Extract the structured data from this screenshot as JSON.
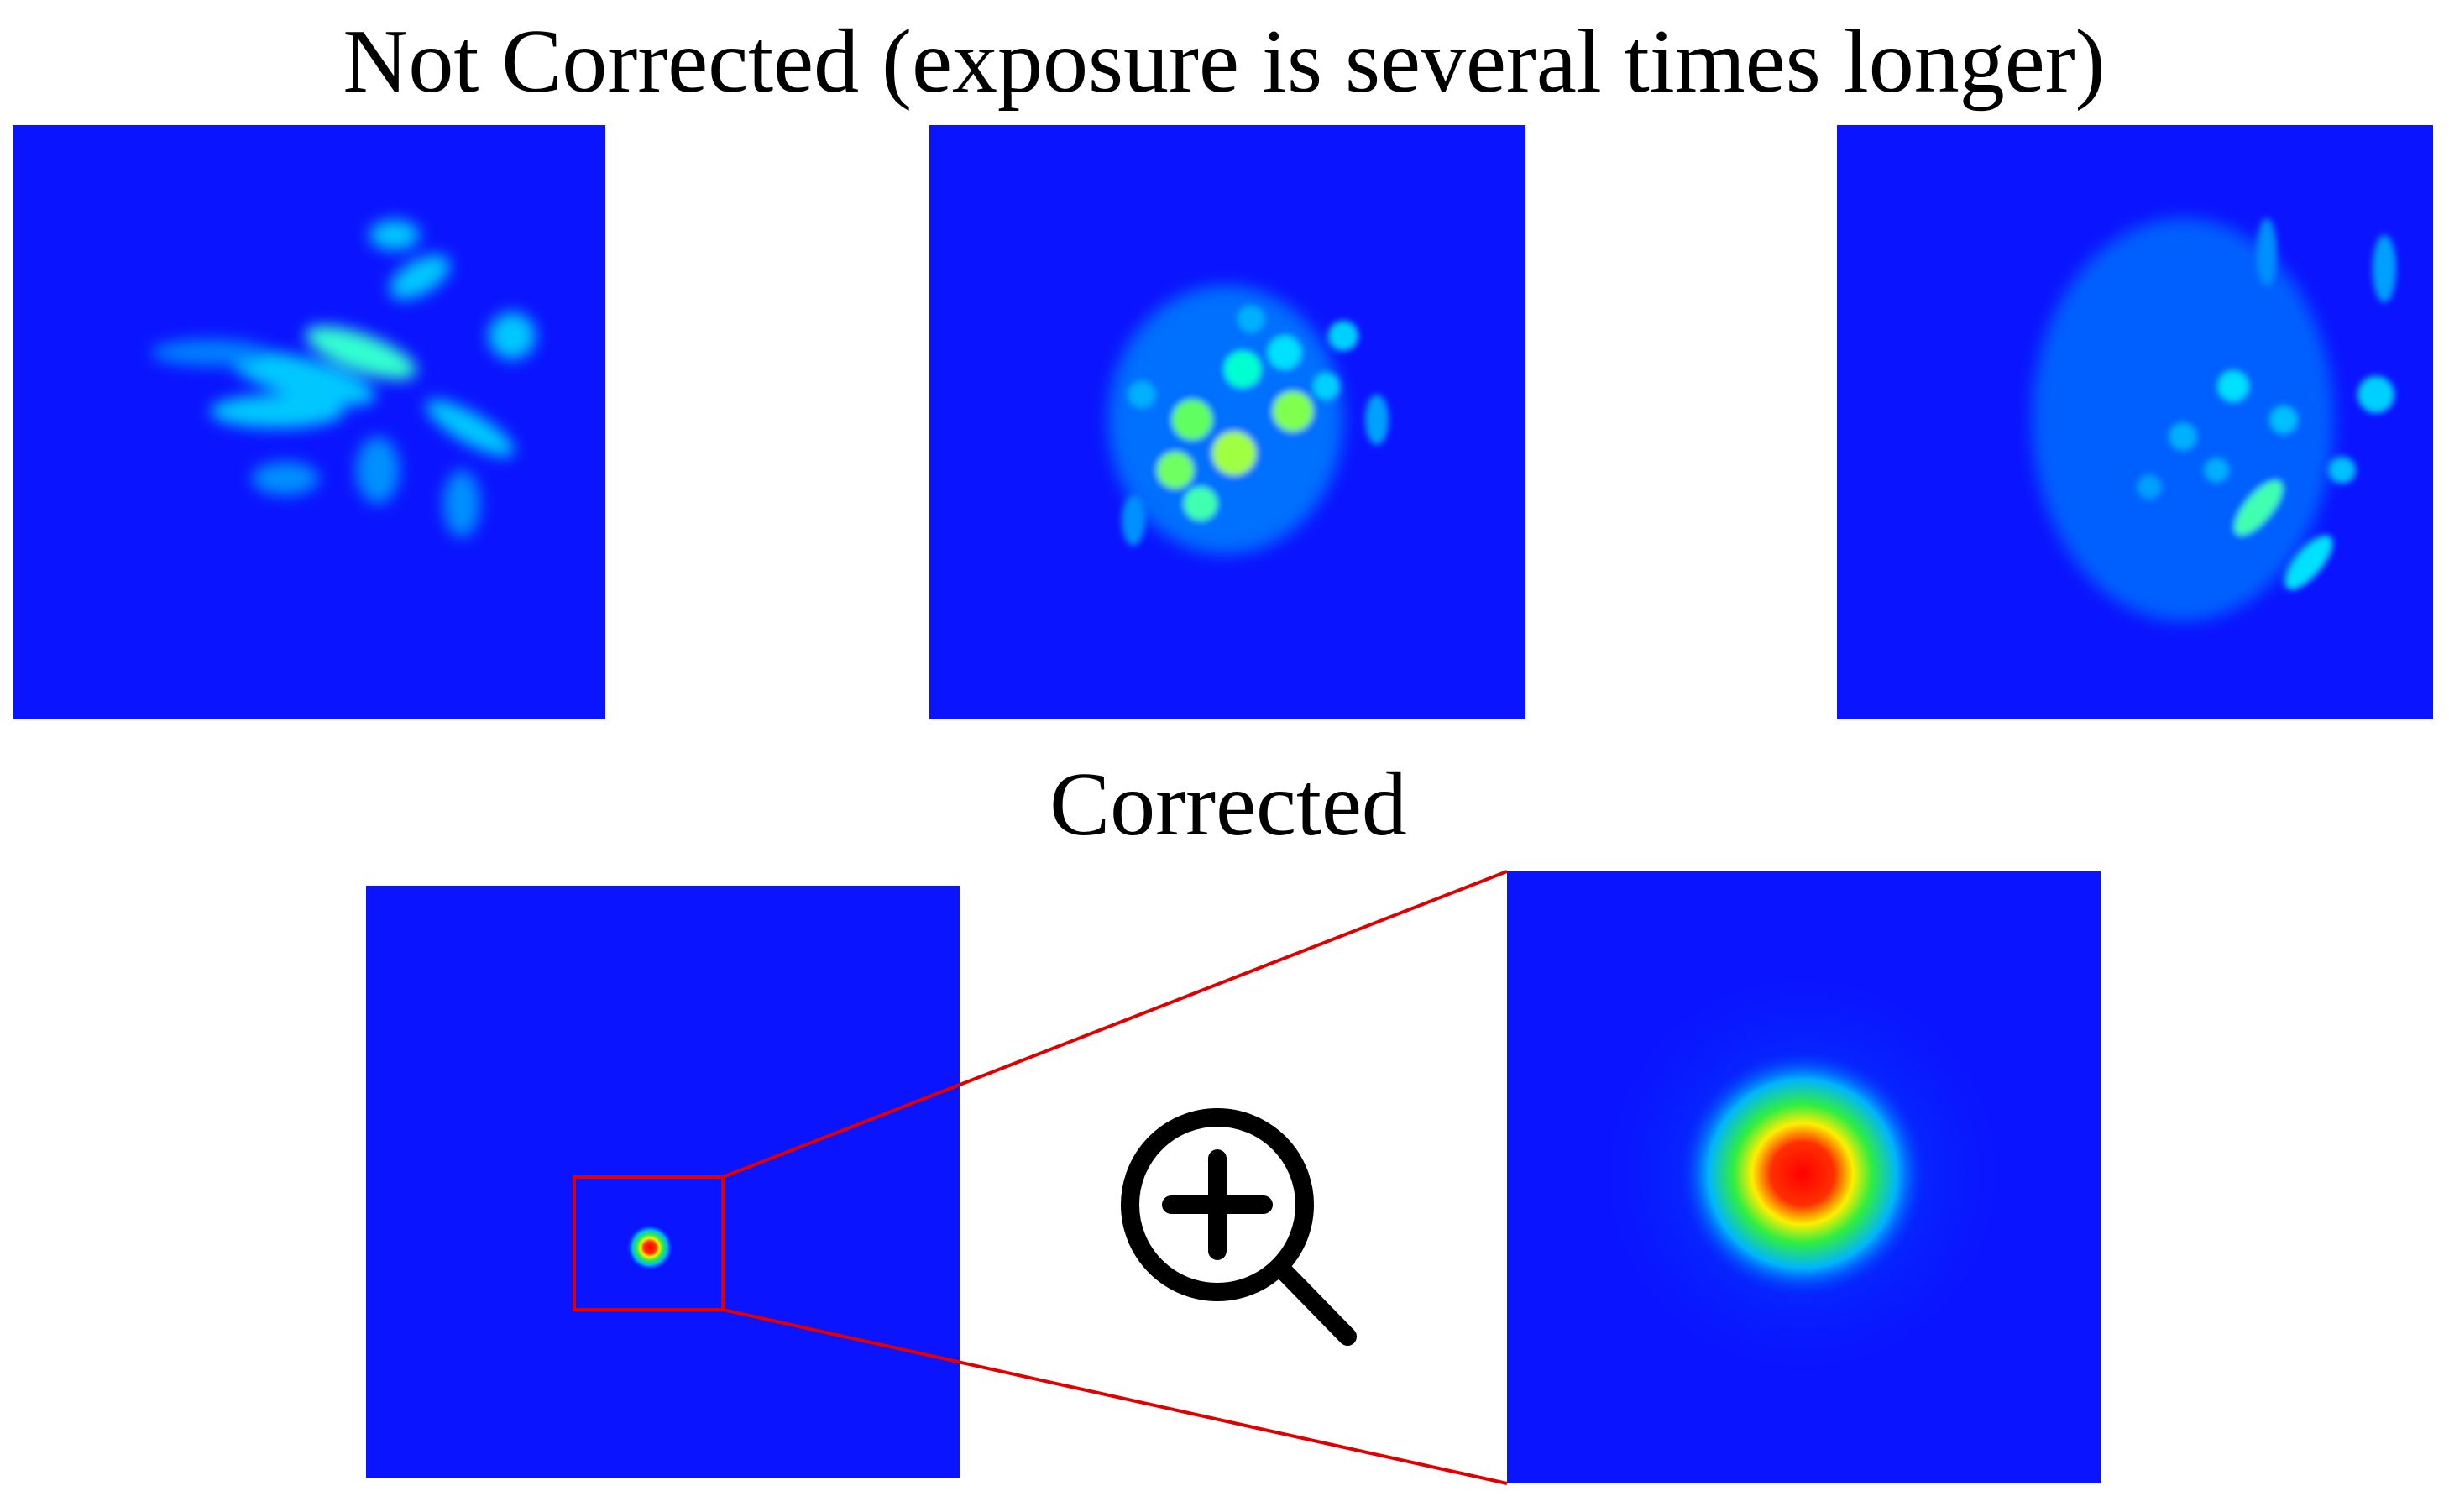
{
  "top": {
    "title": "Not Corrected (exposure is several times longer)"
  },
  "bottom": {
    "title": "Corrected"
  }
}
